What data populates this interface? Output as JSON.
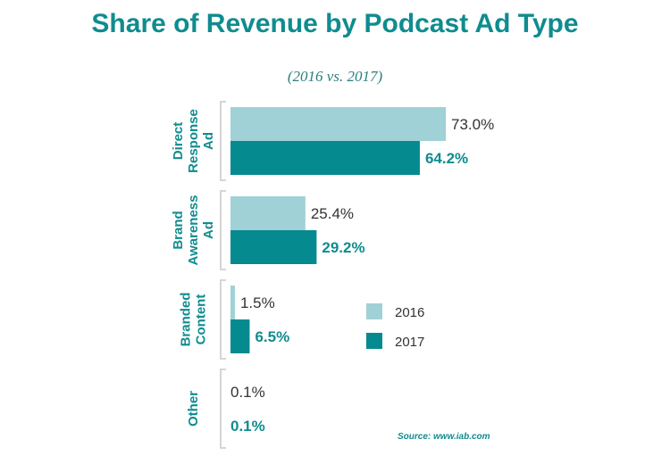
{
  "chart_data": {
    "type": "bar",
    "orientation": "horizontal",
    "title": "Share of Revenue by Podcast Ad Type",
    "subtitle": "(2016 vs. 2017)",
    "categories": [
      "Direct Response Ad",
      "Brand Awareness Ad",
      "Branded Content",
      "Other"
    ],
    "category_label_lines": [
      [
        "Direct",
        "Response",
        "Ad"
      ],
      [
        "Brand",
        "Awareness",
        "Ad"
      ],
      [
        "Branded",
        "Content"
      ],
      [
        "Other"
      ]
    ],
    "series": [
      {
        "name": "2016",
        "values": [
          73.0,
          25.4,
          1.5,
          0.1
        ],
        "labels": [
          "73.0%",
          "25.4%",
          "1.5%",
          "0.1%"
        ],
        "color": "#9fd1d6"
      },
      {
        "name": "2017",
        "values": [
          64.2,
          29.2,
          6.5,
          0.1
        ],
        "labels": [
          "64.2%",
          "29.2%",
          "6.5%",
          "0.1%"
        ],
        "color": "#058a90"
      }
    ],
    "xlim": [
      0,
      100
    ],
    "grid": false,
    "legend_position": "right-center",
    "source": "Source: www.iab.com"
  }
}
